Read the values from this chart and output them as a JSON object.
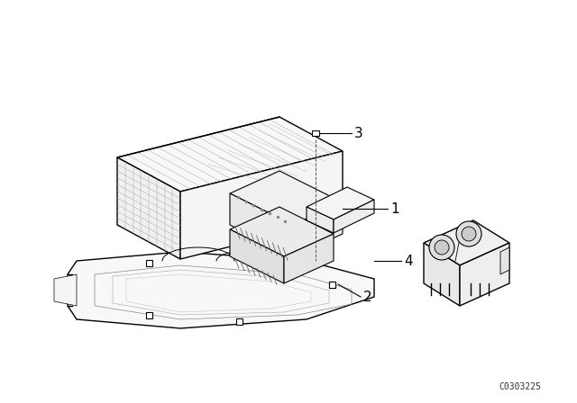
{
  "bg_color": "#ffffff",
  "line_color": "#000000",
  "diagram_code": "C0303225",
  "fig_width": 6.4,
  "fig_height": 4.48,
  "dpi": 100,
  "lw_main": 1.0,
  "lw_thin": 0.5,
  "lw_detail": 0.35
}
